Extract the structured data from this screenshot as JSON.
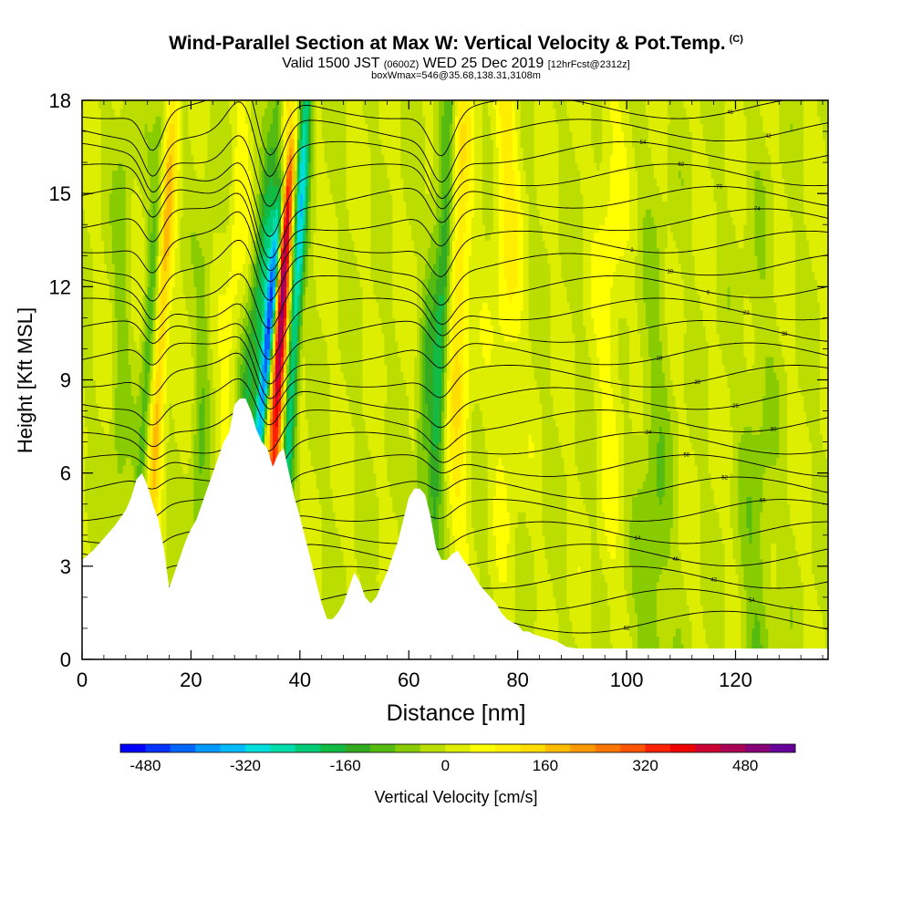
{
  "chart_data": {
    "type": "heatmap",
    "title": "Wind-Parallel Section at Max W: Vertical Velocity & Pot.Temp.",
    "title_mark": "(C)",
    "subtitle_main": "Valid 1500 JST",
    "subtitle_utc": "(0600Z)",
    "subtitle_date": "WED 25 Dec 2019",
    "subtitle_fcst": "[12hrFcst@2312z]",
    "subtitle2": "boxWmax=546@35.68,138.31,3108m",
    "xlabel": "Distance [nm]",
    "ylabel": "Height [Kft MSL]",
    "xlim": [
      0,
      137
    ],
    "ylim": [
      0,
      18
    ],
    "xticks": [
      "0",
      "20",
      "40",
      "60",
      "80",
      "100",
      "120"
    ],
    "yticks": [
      "0",
      "3",
      "6",
      "9",
      "12",
      "15",
      "18"
    ],
    "colorbar": {
      "label": "Vertical Velocity [cm/s]",
      "tick_labels": [
        "-480",
        "-320",
        "-160",
        "0",
        "160",
        "320",
        "480"
      ],
      "tick_values": [
        -480,
        -320,
        -160,
        0,
        160,
        320,
        480
      ],
      "min": -520,
      "max": 560,
      "colors": [
        "#0000ff",
        "#0033ff",
        "#0066ff",
        "#0099ff",
        "#00bbff",
        "#00dddd",
        "#00ddaa",
        "#00cc77",
        "#11bb44",
        "#33aa22",
        "#55bb11",
        "#88cc00",
        "#bbdd00",
        "#ddee00",
        "#ffff00",
        "#ffee00",
        "#ffdd00",
        "#ffbb00",
        "#ff9900",
        "#ff7700",
        "#ff5500",
        "#ff2200",
        "#ee0000",
        "#cc0033",
        "#aa0055",
        "#880077",
        "#660099"
      ]
    },
    "terrain_kft": [
      [
        0,
        3.2
      ],
      [
        2,
        3.5
      ],
      [
        4,
        3.9
      ],
      [
        6,
        4.3
      ],
      [
        8,
        4.8
      ],
      [
        9,
        5.2
      ],
      [
        10,
        5.8
      ],
      [
        11,
        6.0
      ],
      [
        12,
        5.6
      ],
      [
        13,
        5.0
      ],
      [
        14,
        4.5
      ],
      [
        15,
        3.6
      ],
      [
        16,
        2.3
      ],
      [
        17,
        2.8
      ],
      [
        18,
        3.3
      ],
      [
        19,
        3.8
      ],
      [
        20,
        4.2
      ],
      [
        21,
        4.5
      ],
      [
        22,
        5.0
      ],
      [
        23,
        5.5
      ],
      [
        24,
        6.0
      ],
      [
        25,
        6.5
      ],
      [
        26,
        7.0
      ],
      [
        27,
        7.3
      ],
      [
        28,
        8.2
      ],
      [
        29,
        8.4
      ],
      [
        30,
        8.4
      ],
      [
        31,
        8.0
      ],
      [
        32,
        7.4
      ],
      [
        33,
        7.0
      ],
      [
        34,
        6.8
      ],
      [
        35,
        6.2
      ],
      [
        36,
        6.6
      ],
      [
        37,
        6.8
      ],
      [
        38,
        6.0
      ],
      [
        39,
        5.2
      ],
      [
        40,
        4.6
      ],
      [
        41,
        3.9
      ],
      [
        42,
        3.2
      ],
      [
        43,
        2.5
      ],
      [
        44,
        1.8
      ],
      [
        45,
        1.3
      ],
      [
        46,
        1.3
      ],
      [
        47,
        1.5
      ],
      [
        48,
        1.8
      ],
      [
        49,
        2.3
      ],
      [
        50,
        2.8
      ],
      [
        51,
        2.5
      ],
      [
        52,
        2.0
      ],
      [
        53,
        1.8
      ],
      [
        54,
        2.0
      ],
      [
        55,
        2.4
      ],
      [
        56,
        2.8
      ],
      [
        57,
        3.3
      ],
      [
        58,
        3.8
      ],
      [
        59,
        4.5
      ],
      [
        60,
        5.2
      ],
      [
        61,
        5.5
      ],
      [
        62,
        5.5
      ],
      [
        63,
        5.3
      ],
      [
        64,
        4.6
      ],
      [
        65,
        3.6
      ],
      [
        66,
        3.2
      ],
      [
        67,
        3.2
      ],
      [
        68,
        3.4
      ],
      [
        69,
        3.5
      ],
      [
        70,
        3.2
      ],
      [
        71,
        3.0
      ],
      [
        72,
        2.7
      ],
      [
        73,
        2.4
      ],
      [
        74,
        2.2
      ],
      [
        75,
        2.0
      ],
      [
        76,
        1.8
      ],
      [
        77,
        1.5
      ],
      [
        78,
        1.3
      ],
      [
        79,
        1.2
      ],
      [
        80,
        1.1
      ],
      [
        81,
        0.9
      ],
      [
        82,
        0.9
      ],
      [
        83,
        0.8
      ],
      [
        85,
        0.7
      ],
      [
        87,
        0.6
      ],
      [
        89,
        0.4
      ],
      [
        91,
        0.35
      ],
      [
        137,
        0.35
      ]
    ],
    "theta_contours": 24,
    "contour_labels": [
      "62",
      "54",
      "42",
      "46",
      "14",
      "66",
      "52",
      "58",
      "34",
      "50",
      "26",
      "30",
      "18",
      "38",
      "22",
      "6",
      "10",
      "2",
      "74",
      "70"
    ],
    "grid": false
  }
}
